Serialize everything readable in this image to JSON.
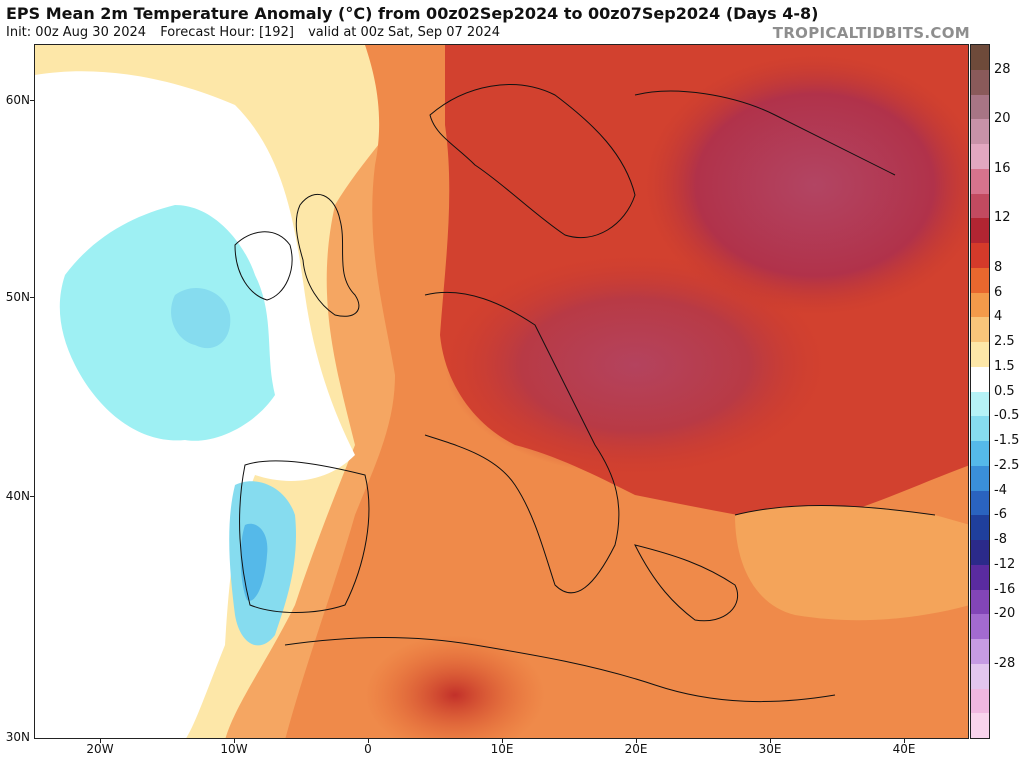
{
  "header": {
    "title": "EPS Mean 2m Temperature Anomaly (°C) from 00z02Sep2024 to 00z07Sep2024 (Days 4-8)",
    "init": "Init: 00z Aug 30 2024",
    "forecast_hour": "Forecast Hour: [192]",
    "valid": "valid at 00z Sat, Sep 07 2024",
    "brand": "TROPICALTIDBITS.COM"
  },
  "axes": {
    "lat_labels": [
      "60N",
      "50N",
      "40N",
      "30N"
    ],
    "lon_labels": [
      "20W",
      "10W",
      "0",
      "10E",
      "20E",
      "30E",
      "40E"
    ]
  },
  "colorbar": {
    "labels": [
      "28",
      "20",
      "16",
      "12",
      "8",
      "6",
      "4",
      "2.5",
      "1.5",
      "0.5",
      "-0.5",
      "-1.5",
      "-2.5",
      "-4",
      "-6",
      "-8",
      "-12",
      "-16",
      "-20",
      "-28"
    ],
    "colors": [
      "#6e4a3a",
      "#8a5a5a",
      "#a87585",
      "#c892a8",
      "#e2a7c0",
      "#d7738d",
      "#c24a60",
      "#b22532",
      "#d43a2a",
      "#e8672e",
      "#f39a4a",
      "#f8c57a",
      "#fde7a8",
      "#ffffff",
      "#b6f2f6",
      "#86dcef",
      "#55b9e9",
      "#3a8fd8",
      "#2a63bf",
      "#1f3f9c",
      "#2b2a8a",
      "#5a2ba0",
      "#8245b8",
      "#a36ad0",
      "#c69be3",
      "#e3c6ee",
      "#f0b8e0",
      "#f8d4ec"
    ]
  },
  "colors": {
    "ocean_cool": "#9ef0f3",
    "anomaly_warm": "#f0864a",
    "anomaly_hot": "#c93a3a",
    "anomaly_very_hot": "#b63a55"
  }
}
